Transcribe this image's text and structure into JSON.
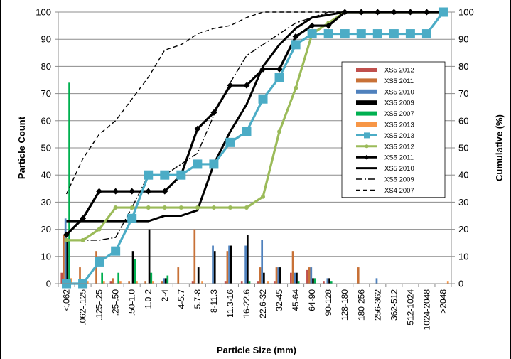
{
  "chart_data": {
    "type": "bar+line",
    "xlabel": "Particle Size (mm)",
    "ylabel_left": "Particle Count",
    "ylabel_right": "Cumulative (%)",
    "ylim_left": [
      0,
      100
    ],
    "ylim_right": [
      0,
      100
    ],
    "yticks": [
      0,
      10,
      20,
      30,
      40,
      50,
      60,
      70,
      80,
      90,
      100
    ],
    "grid": true,
    "legend_position": "right",
    "categories": [
      "<.062",
      ".062-.125",
      ".125-.25",
      ".25-.50",
      ".50-1.0",
      "1.0-2",
      "2-4",
      "4-5.7",
      "5.7-8",
      "8-11.3",
      "11.3-16",
      "16-22.6",
      "22.6-32",
      "32-45",
      "45-64",
      "64-90",
      "90-128",
      "128-180",
      "180-256",
      "256-362",
      "362-512",
      "512-1024",
      "1024-2048",
      ">2048"
    ],
    "bar_series": [
      {
        "name": "XS5 2012",
        "color": "#c0504d",
        "values": [
          4,
          0,
          0,
          1,
          0,
          0,
          0,
          0,
          1,
          0,
          1,
          1,
          1,
          1,
          4,
          5,
          1,
          0,
          0,
          0,
          0,
          0,
          0,
          0
        ]
      },
      {
        "name": "XS5 2011",
        "color": "#c87137",
        "values": [
          18,
          6,
          12,
          2,
          1,
          1,
          1,
          6,
          20,
          0,
          12,
          0,
          6,
          6,
          12,
          6,
          0,
          0,
          6,
          0,
          0,
          0,
          0,
          0
        ]
      },
      {
        "name": "XS5 2010",
        "color": "#4f81bd",
        "values": [
          24,
          0,
          0,
          0,
          0,
          0,
          2,
          0,
          0,
          14,
          14,
          14,
          16,
          6,
          4,
          6,
          2,
          0,
          0,
          2,
          0,
          0,
          0,
          0
        ]
      },
      {
        "name": "XS5 2009",
        "color": "#000000",
        "values": [
          16,
          0,
          0,
          0,
          12,
          20,
          2,
          0,
          6,
          12,
          14,
          18,
          4,
          6,
          4,
          2,
          2,
          0,
          0,
          0,
          0,
          0,
          0,
          0
        ]
      },
      {
        "name": "XS5 2007",
        "color": "#00b050",
        "values": [
          74,
          0,
          4,
          4,
          9,
          4,
          3,
          0,
          0,
          0,
          0,
          1,
          0,
          0,
          1,
          2,
          1,
          0,
          0,
          0,
          0,
          0,
          0,
          0
        ]
      },
      {
        "name": "XS5 2013",
        "color": "#f79646",
        "values": [
          2,
          1,
          1,
          1,
          1,
          1,
          0,
          0,
          1,
          0,
          0,
          0,
          1,
          0,
          0,
          0,
          0,
          0,
          0,
          0,
          0,
          0,
          0,
          1
        ]
      }
    ],
    "line_series": [
      {
        "name": "XS5 2013",
        "color": "#4bacc6",
        "marker": "square",
        "values": [
          0,
          0,
          8,
          12,
          24,
          40,
          40,
          40,
          44,
          44,
          52,
          56,
          68,
          76,
          88,
          92,
          92,
          92,
          92,
          92,
          92,
          92,
          92,
          100
        ]
      },
      {
        "name": "XS5 2012",
        "color": "#9bbb59",
        "marker": "circle",
        "values": [
          16,
          16,
          20,
          28,
          28,
          28,
          28,
          28,
          28,
          28,
          28,
          28,
          32,
          56,
          72,
          92,
          96,
          100,
          100,
          100,
          100,
          100,
          100,
          100
        ]
      },
      {
        "name": "XS5 2011",
        "color": "#000000",
        "marker": "diamond",
        "values": [
          18,
          24,
          34,
          34,
          34,
          34,
          34,
          40,
          57,
          63,
          73,
          73,
          79,
          79,
          91,
          95,
          95,
          100,
          100,
          100,
          100,
          100,
          100,
          100
        ]
      },
      {
        "name": "XS5 2010",
        "color": "#000000",
        "marker": "none",
        "values": [
          23,
          23,
          23,
          23,
          23,
          23,
          25,
          25,
          27,
          44,
          56,
          66,
          80,
          88,
          94,
          98,
          99,
          100,
          100,
          100,
          100,
          100,
          100,
          100
        ]
      },
      {
        "name": "XS5 2009",
        "color": "#000000",
        "marker": "none",
        "dash": "dashdot",
        "values": [
          16,
          16,
          16,
          17,
          28,
          40,
          40,
          44,
          48,
          62,
          74,
          84,
          88,
          92,
          96,
          98,
          100,
          100,
          100,
          100,
          100,
          100,
          100,
          100
        ]
      },
      {
        "name": "XS4 2007",
        "color": "#000000",
        "marker": "none",
        "dash": "dash",
        "values": [
          33,
          46,
          55,
          60,
          68,
          76,
          86,
          88,
          92,
          94,
          95,
          98,
          100,
          100,
          100,
          100,
          100,
          100,
          100,
          100,
          100,
          100,
          100,
          100
        ]
      }
    ],
    "legend_entries": [
      {
        "name": "XS5 2012",
        "kind": "bar",
        "color": "#c0504d"
      },
      {
        "name": "XS5 2011",
        "kind": "bar",
        "color": "#c87137"
      },
      {
        "name": "XS5 2010",
        "kind": "bar",
        "color": "#4f81bd"
      },
      {
        "name": "XS5 2009",
        "kind": "bar",
        "color": "#000000"
      },
      {
        "name": "XS5 2007",
        "kind": "bar",
        "color": "#00b050"
      },
      {
        "name": "XS5 2013",
        "kind": "bar",
        "color": "#f79646"
      },
      {
        "name": "XS5 2013",
        "kind": "line",
        "color": "#4bacc6",
        "marker": "square"
      },
      {
        "name": "XS5 2012",
        "kind": "line",
        "color": "#9bbb59",
        "marker": "circle"
      },
      {
        "name": "XS5 2011",
        "kind": "line",
        "color": "#000000",
        "marker": "diamond"
      },
      {
        "name": "XS5 2010",
        "kind": "line",
        "color": "#000000",
        "marker": "none"
      },
      {
        "name": "XS5 2009",
        "kind": "line",
        "color": "#000000",
        "dash": "dashdot"
      },
      {
        "name": "XS4 2007",
        "kind": "line",
        "color": "#000000",
        "dash": "dash"
      }
    ]
  }
}
